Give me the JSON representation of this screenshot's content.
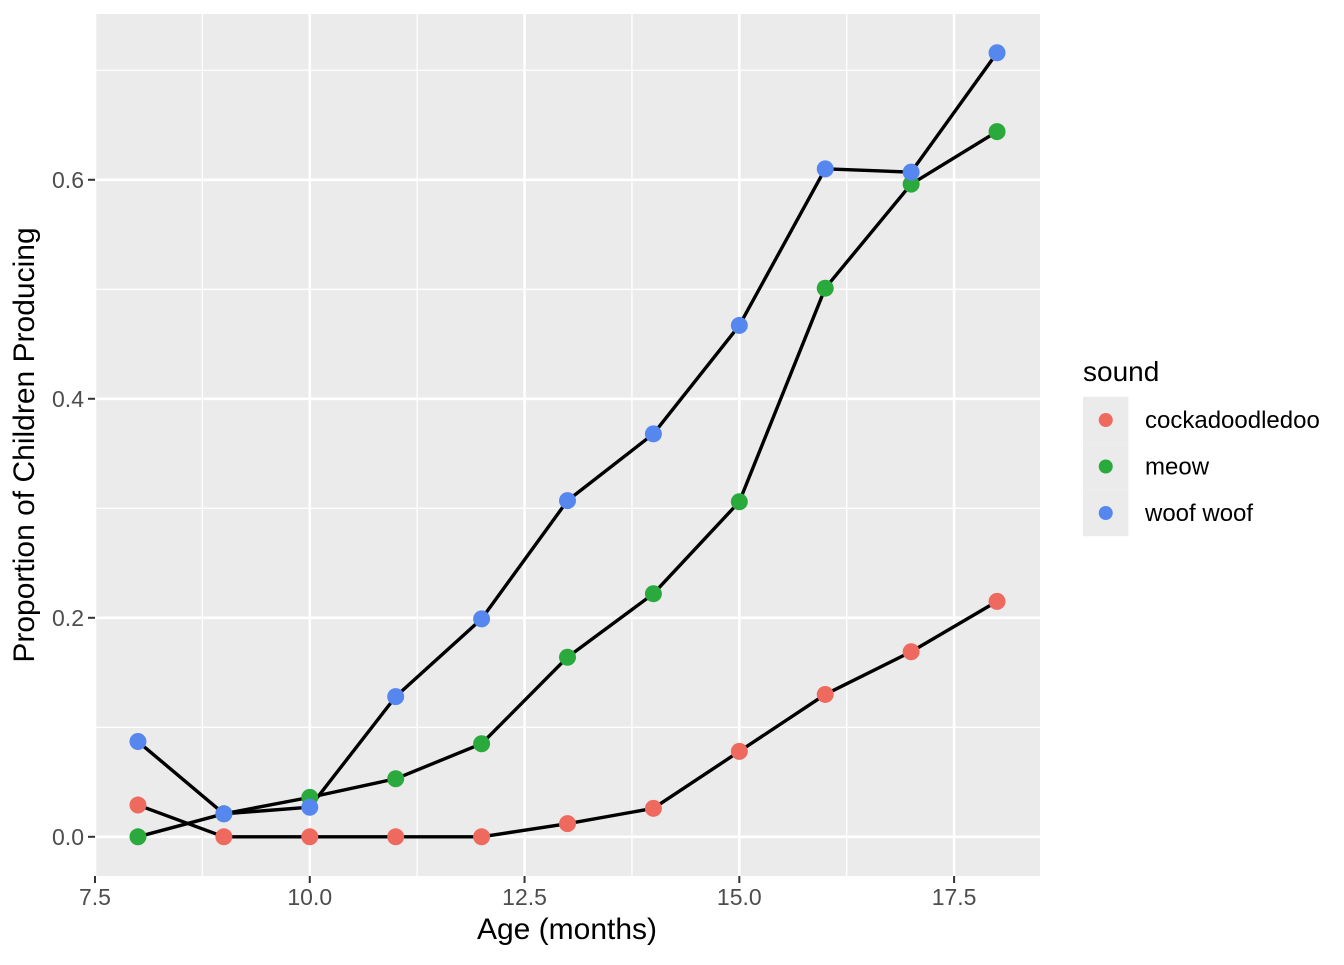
{
  "chart_data": {
    "type": "line",
    "title": "",
    "xlabel": "Age (months)",
    "ylabel": "Proportion of Children Producing",
    "legend_title": "sound",
    "legend_position": "right",
    "grid": true,
    "x": [
      8,
      9,
      10,
      11,
      12,
      13,
      14,
      15,
      16,
      17,
      18
    ],
    "series": [
      {
        "name": "cockadoodledoo",
        "color": "#EE6A5F",
        "values": [
          0.029,
          0.0,
          0.0,
          0.0,
          0.0,
          0.012,
          0.026,
          0.078,
          0.13,
          0.169,
          0.215
        ]
      },
      {
        "name": "meow",
        "color": "#2AA93C",
        "values": [
          0.0,
          0.021,
          0.036,
          0.053,
          0.085,
          0.164,
          0.222,
          0.306,
          0.501,
          0.596,
          0.644
        ]
      },
      {
        "name": "woof woof",
        "color": "#5587EF",
        "values": [
          0.087,
          0.021,
          0.027,
          0.128,
          0.199,
          0.307,
          0.368,
          0.467,
          0.61,
          0.607,
          0.716
        ]
      }
    ],
    "line_color": "#000000",
    "x_ticks": {
      "values": [
        7.5,
        10.0,
        12.5,
        15.0,
        17.5
      ],
      "labels": [
        "7.5",
        "10.0",
        "12.5",
        "15.0",
        "17.5"
      ]
    },
    "y_ticks": {
      "values": [
        0.0,
        0.2,
        0.4,
        0.6
      ],
      "labels": [
        "0.0",
        "0.2",
        "0.4",
        "0.6"
      ]
    },
    "x_minor": [
      8.75,
      11.25,
      13.75,
      16.25
    ],
    "y_minor": [
      0.1,
      0.3,
      0.5,
      0.7
    ],
    "xlim": [
      7.5,
      18.5
    ],
    "ylim": [
      -0.0358,
      0.7514
    ],
    "panel_bg": "#EBEBEB",
    "grid_color": "#FFFFFF",
    "tick_color": "#333333",
    "tick_label_color": "#4D4D4D",
    "legend_key_bg": "#EBEBEB"
  }
}
